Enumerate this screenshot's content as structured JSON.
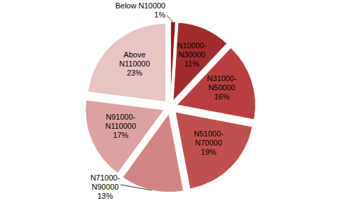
{
  "chart_data": {
    "type": "pie",
    "categories": [
      "Below N10000",
      "N10000-N30000",
      "N31000-N50000",
      "N51000-N70000",
      "N71000-N90000",
      "N91000-N110000",
      "Above N110000"
    ],
    "values": [
      1,
      11,
      16,
      19,
      13,
      17,
      23
    ],
    "value_labels": [
      "1%",
      "11%",
      "16%",
      "19%",
      "13%",
      "17%",
      "23%"
    ],
    "colors": [
      "#8c1c1c",
      "#a02d2c",
      "#b73f3e",
      "#c0504d",
      "#d18684",
      "#dca2a1",
      "#e8c5c4"
    ],
    "data_labels": true
  }
}
